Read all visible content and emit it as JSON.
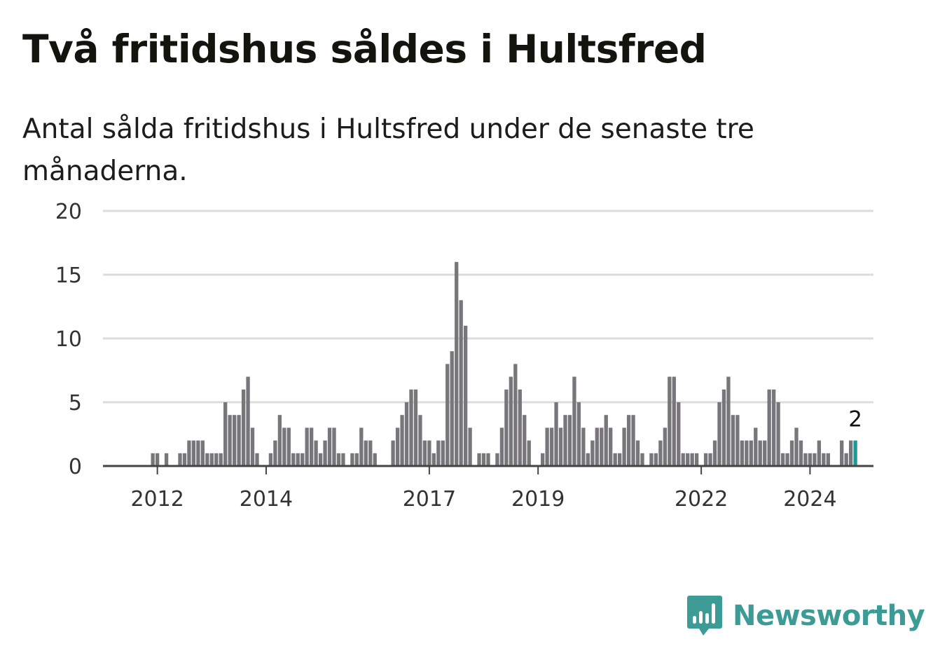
{
  "title": "Två fritidshus såldes i Hultsfred",
  "subtitle": "Antal sålda fritidshus i Hultsfred under de senaste tre månaderna.",
  "brand": {
    "name": "Newsworthy",
    "icon": "bar-chart-speech-bubble-icon",
    "color": "#3d9b96"
  },
  "colors": {
    "bar": "#77767b",
    "highlight": "#1a9c96",
    "grid": "#dcdcdc",
    "axis": "#444444"
  },
  "chart_data": {
    "type": "bar",
    "title": "Två fritidshus såldes i Hultsfred",
    "subtitle": "Antal sålda fritidshus i Hultsfred under de senaste tre månaderna.",
    "xlabel": "",
    "ylabel": "",
    "ylim": [
      0,
      20
    ],
    "yticks": [
      "0",
      "5",
      "10",
      "15",
      "20"
    ],
    "x_range": [
      "2011-01",
      "2025-03"
    ],
    "xticks": [
      {
        "label": "2012",
        "date": "2012-01"
      },
      {
        "label": "2014",
        "date": "2014-01"
      },
      {
        "label": "2017",
        "date": "2017-01"
      },
      {
        "label": "2019",
        "date": "2019-01"
      },
      {
        "label": "2022",
        "date": "2022-01"
      },
      {
        "label": "2024",
        "date": "2024-01"
      }
    ],
    "grid": true,
    "highlight_last": true,
    "last_value_label": "2",
    "series": [
      {
        "values": [
          [
            "2011-12",
            1
          ],
          [
            "2012-01",
            1
          ],
          [
            "2012-03",
            1
          ],
          [
            "2012-06",
            1
          ],
          [
            "2012-07",
            1
          ],
          [
            "2012-08",
            2
          ],
          [
            "2012-09",
            2
          ],
          [
            "2012-10",
            2
          ],
          [
            "2012-11",
            2
          ],
          [
            "2012-12",
            1
          ],
          [
            "2013-01",
            1
          ],
          [
            "2013-02",
            1
          ],
          [
            "2013-03",
            1
          ],
          [
            "2013-04",
            5
          ],
          [
            "2013-05",
            4
          ],
          [
            "2013-06",
            4
          ],
          [
            "2013-07",
            4
          ],
          [
            "2013-08",
            6
          ],
          [
            "2013-09",
            7
          ],
          [
            "2013-10",
            3
          ],
          [
            "2013-11",
            1
          ],
          [
            "2014-02",
            1
          ],
          [
            "2014-03",
            2
          ],
          [
            "2014-04",
            4
          ],
          [
            "2014-05",
            3
          ],
          [
            "2014-06",
            3
          ],
          [
            "2014-07",
            1
          ],
          [
            "2014-08",
            1
          ],
          [
            "2014-09",
            1
          ],
          [
            "2014-10",
            3
          ],
          [
            "2014-11",
            3
          ],
          [
            "2014-12",
            2
          ],
          [
            "2015-01",
            1
          ],
          [
            "2015-02",
            2
          ],
          [
            "2015-03",
            3
          ],
          [
            "2015-04",
            3
          ],
          [
            "2015-05",
            1
          ],
          [
            "2015-06",
            1
          ],
          [
            "2015-08",
            1
          ],
          [
            "2015-09",
            1
          ],
          [
            "2015-10",
            3
          ],
          [
            "2015-11",
            2
          ],
          [
            "2015-12",
            2
          ],
          [
            "2016-01",
            1
          ],
          [
            "2016-05",
            2
          ],
          [
            "2016-06",
            3
          ],
          [
            "2016-07",
            4
          ],
          [
            "2016-08",
            5
          ],
          [
            "2016-09",
            6
          ],
          [
            "2016-10",
            6
          ],
          [
            "2016-11",
            4
          ],
          [
            "2016-12",
            2
          ],
          [
            "2017-01",
            2
          ],
          [
            "2017-02",
            1
          ],
          [
            "2017-03",
            2
          ],
          [
            "2017-04",
            2
          ],
          [
            "2017-05",
            8
          ],
          [
            "2017-06",
            9
          ],
          [
            "2017-07",
            16
          ],
          [
            "2017-08",
            13
          ],
          [
            "2017-09",
            11
          ],
          [
            "2017-10",
            3
          ],
          [
            "2017-12",
            1
          ],
          [
            "2018-01",
            1
          ],
          [
            "2018-02",
            1
          ],
          [
            "2018-04",
            1
          ],
          [
            "2018-05",
            3
          ],
          [
            "2018-06",
            6
          ],
          [
            "2018-07",
            7
          ],
          [
            "2018-08",
            8
          ],
          [
            "2018-09",
            6
          ],
          [
            "2018-10",
            4
          ],
          [
            "2018-11",
            2
          ],
          [
            "2019-02",
            1
          ],
          [
            "2019-03",
            3
          ],
          [
            "2019-04",
            3
          ],
          [
            "2019-05",
            5
          ],
          [
            "2019-06",
            3
          ],
          [
            "2019-07",
            4
          ],
          [
            "2019-08",
            4
          ],
          [
            "2019-09",
            7
          ],
          [
            "2019-10",
            5
          ],
          [
            "2019-11",
            3
          ],
          [
            "2019-12",
            1
          ],
          [
            "2020-01",
            2
          ],
          [
            "2020-02",
            3
          ],
          [
            "2020-03",
            3
          ],
          [
            "2020-04",
            4
          ],
          [
            "2020-05",
            3
          ],
          [
            "2020-06",
            1
          ],
          [
            "2020-07",
            1
          ],
          [
            "2020-08",
            3
          ],
          [
            "2020-09",
            4
          ],
          [
            "2020-10",
            4
          ],
          [
            "2020-11",
            2
          ],
          [
            "2020-12",
            1
          ],
          [
            "2021-02",
            1
          ],
          [
            "2021-03",
            1
          ],
          [
            "2021-04",
            2
          ],
          [
            "2021-05",
            3
          ],
          [
            "2021-06",
            7
          ],
          [
            "2021-07",
            7
          ],
          [
            "2021-08",
            5
          ],
          [
            "2021-09",
            1
          ],
          [
            "2021-10",
            1
          ],
          [
            "2021-11",
            1
          ],
          [
            "2021-12",
            1
          ],
          [
            "2022-02",
            1
          ],
          [
            "2022-03",
            1
          ],
          [
            "2022-04",
            2
          ],
          [
            "2022-05",
            5
          ],
          [
            "2022-06",
            6
          ],
          [
            "2022-07",
            7
          ],
          [
            "2022-08",
            4
          ],
          [
            "2022-09",
            4
          ],
          [
            "2022-10",
            2
          ],
          [
            "2022-11",
            2
          ],
          [
            "2022-12",
            2
          ],
          [
            "2023-01",
            3
          ],
          [
            "2023-02",
            2
          ],
          [
            "2023-03",
            2
          ],
          [
            "2023-04",
            6
          ],
          [
            "2023-05",
            6
          ],
          [
            "2023-06",
            5
          ],
          [
            "2023-07",
            1
          ],
          [
            "2023-08",
            1
          ],
          [
            "2023-09",
            2
          ],
          [
            "2023-10",
            3
          ],
          [
            "2023-11",
            2
          ],
          [
            "2023-12",
            1
          ],
          [
            "2024-01",
            1
          ],
          [
            "2024-02",
            1
          ],
          [
            "2024-03",
            2
          ],
          [
            "2024-04",
            1
          ],
          [
            "2024-05",
            1
          ],
          [
            "2024-08",
            2
          ],
          [
            "2024-09",
            1
          ],
          [
            "2024-10",
            2
          ],
          [
            "2024-11",
            2
          ]
        ]
      }
    ]
  }
}
